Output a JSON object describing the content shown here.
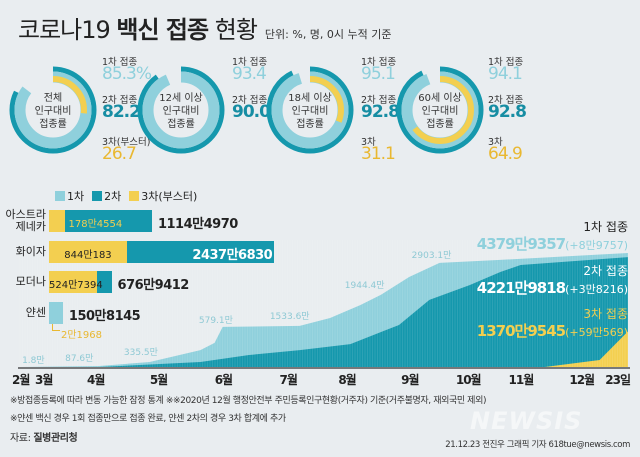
{
  "title": {
    "light": "코로나19",
    "bold": "백신 접종",
    "light2": "현황"
  },
  "unit": "단위: %, 명, 0시 누적 기준",
  "colors": {
    "dose1": "#8fd0dc",
    "dose2": "#1598ad",
    "dose3": "#f3cf50"
  },
  "donuts": [
    {
      "center": [
        "전체",
        "인구대비",
        "접종률"
      ],
      "dose1_label": "1차 접종",
      "dose1": 85.3,
      "dose1_text": "85.3%",
      "dose2_label": "2차 접종",
      "dose2": 82.2,
      "dose2_text": "82.2",
      "dose3_label": "3차(부스터)",
      "dose3": 26.7,
      "dose3_text": "26.7"
    },
    {
      "center": [
        "12세 이상",
        "인구대비",
        "접종률"
      ],
      "dose1_label": "1차 접종",
      "dose1": 93.4,
      "dose1_text": "93.4",
      "dose2_label": "2차 접종",
      "dose2": 90.0,
      "dose2_text": "90.0",
      "dose3_label": "",
      "dose3": 0,
      "dose3_text": ""
    },
    {
      "center": [
        "18세 이상",
        "인구대비",
        "접종률"
      ],
      "dose1_label": "1차 접종",
      "dose1": 95.1,
      "dose1_text": "95.1",
      "dose2_label": "2차 접종",
      "dose2": 92.8,
      "dose2_text": "92.8",
      "dose3_label": "3차",
      "dose3": 31.1,
      "dose3_text": "31.1"
    },
    {
      "center": [
        "60세 이상",
        "인구대비",
        "접종률"
      ],
      "dose1_label": "1차 접종",
      "dose1": 94.1,
      "dose1_text": "94.1",
      "dose2_label": "2차 접종",
      "dose2": 92.8,
      "dose2_text": "92.8",
      "dose3_label": "3차",
      "dose3": 64.9,
      "dose3_text": "64.9"
    }
  ],
  "legend": [
    "1차",
    "2차",
    "3차(부스터)"
  ],
  "vaccines": [
    {
      "name": "아스트라\n제네카",
      "inner_value_man": 178.4554,
      "inner_text": "178만4554",
      "total_man": 1114.497,
      "total_text": "1114만4970"
    },
    {
      "name": "화이자",
      "inner_value_man": 844.0183,
      "inner_text": "844만183",
      "total_man": 2437.683,
      "total_text": "2437만6830"
    },
    {
      "name": "모더나",
      "inner_value_man": 524.7394,
      "inner_text": "524만7394",
      "total_man": 676.9412,
      "total_text": "676만9412"
    },
    {
      "name": "얀센",
      "inner_value_man": 0,
      "inner_text": "",
      "total_man": 150.8145,
      "total_text": "150만8145",
      "note": "2만1968"
    }
  ],
  "chart_data": {
    "type": "area",
    "unit": "만 명",
    "x_axis": {
      "unit": "day-of-year 2021",
      "range": [
        57,
        357
      ],
      "ticks": [
        {
          "d": 60,
          "label": "2월"
        },
        {
          "d": 67,
          "label": "3월"
        },
        {
          "d": 95,
          "label": "4월"
        },
        {
          "d": 126,
          "label": "5월"
        },
        {
          "d": 158,
          "label": "6월"
        },
        {
          "d": 190,
          "label": "7월"
        },
        {
          "d": 219,
          "label": "8월"
        },
        {
          "d": 250,
          "label": "9월"
        },
        {
          "d": 277,
          "label": "10월"
        },
        {
          "d": 303,
          "label": "11월"
        },
        {
          "d": 333,
          "label": "12월"
        },
        {
          "d": 348,
          "label": "23일"
        }
      ]
    },
    "ylim": [
      0,
      4380
    ],
    "series": [
      {
        "name": "1차 접종",
        "points": [
          [
            57,
            0
          ],
          [
            96,
            40
          ],
          [
            121,
            192
          ],
          [
            146,
            650
          ],
          [
            153,
            925
          ],
          [
            157,
            1540
          ],
          [
            195,
            1580
          ],
          [
            210,
            1885
          ],
          [
            225,
            2380
          ],
          [
            235,
            2770
          ],
          [
            249,
            3460
          ],
          [
            264,
            4000
          ],
          [
            294,
            4115
          ],
          [
            357,
            4380
          ]
        ]
      },
      {
        "name": "2차 접종",
        "points": [
          [
            57,
            0
          ],
          [
            96,
            0
          ],
          [
            146,
            190
          ],
          [
            170,
            460
          ],
          [
            195,
            650
          ],
          [
            220,
            880
          ],
          [
            244,
            1615
          ],
          [
            259,
            2580
          ],
          [
            279,
            3150
          ],
          [
            294,
            3650
          ],
          [
            304,
            3920
          ],
          [
            357,
            4222
          ]
        ]
      },
      {
        "name": "3차 접종",
        "points": [
          [
            316,
            0
          ],
          [
            343,
            270
          ],
          [
            357,
            1371
          ]
        ]
      }
    ],
    "annotations": [
      {
        "d": 60,
        "label": "1.8만"
      },
      {
        "d": 99,
        "label": "87.6만"
      },
      {
        "d": 128,
        "label": "335.5만"
      },
      {
        "d": 165,
        "label": "579.1만"
      },
      {
        "d": 200,
        "label": "1533.6만"
      },
      {
        "d": 237,
        "label": "1944.4만"
      },
      {
        "d": 270,
        "label": "2903.1만"
      }
    ],
    "totals": [
      {
        "label": "1차 접종",
        "value": "4379만9357",
        "delta": "(+8만9757)"
      },
      {
        "label": "2차 접종",
        "value": "4221만9818",
        "delta": "(+3만8216)"
      },
      {
        "label": "3차 접종",
        "value": "1370만9545",
        "delta": "(+59만569)"
      }
    ]
  },
  "footnotes": [
    "※방접종등록에 따라 변동 가능한 잠정 통계 ※※2020년 12월 행정안전부 주민등록인구현황(거주자) 기준(거주불명자, 재외국민 제외)",
    "※얀센 백신 경우 1회 접종만으로 접종 완료, 얀센 2차의 경우 3차 합계에 추가"
  ],
  "source_label": "자료:",
  "source": "질병관리청",
  "credit": "21.12.23 전진우 그래픽 기자 618tue@newsis.com",
  "logo": "NEWSIS"
}
